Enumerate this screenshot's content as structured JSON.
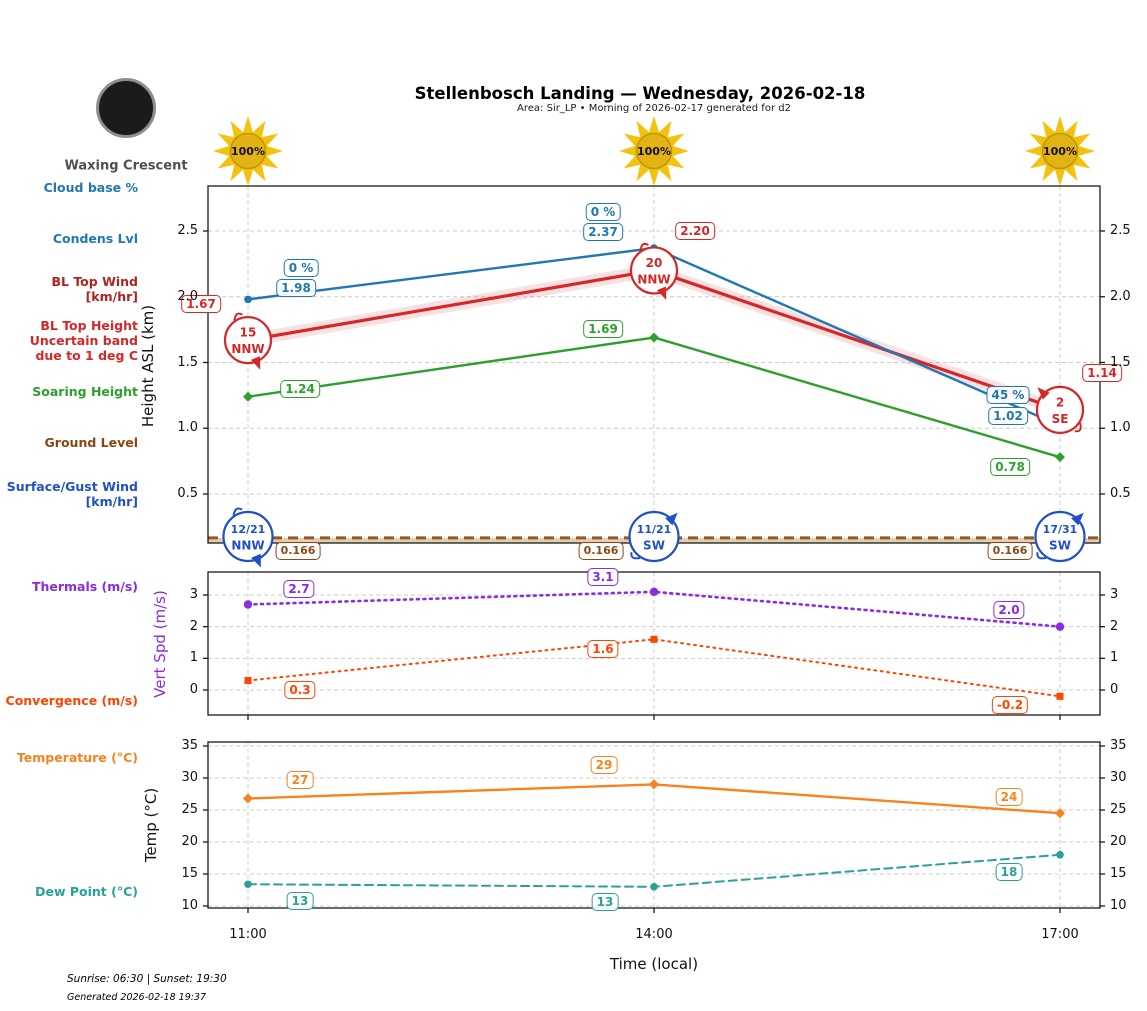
{
  "header": {
    "title": "Stellenbosch Landing — Wednesday, 2026-02-18",
    "subtitle": "Area: Sir_LP • Morning of 2026-02-17 generated for d2",
    "moon_phase": "Waxing Crescent",
    "sun_labels": [
      "100%",
      "100%",
      "100%"
    ]
  },
  "row_labels": {
    "cloud_base": "Cloud base %",
    "condens_lvl": "Condens Lvl",
    "bl_top_wind": "BL Top Wind\n[km/hr]",
    "bl_top_height": "BL Top Height\nUncertain band\ndue to 1 deg C",
    "soaring_height": "Soaring Height",
    "ground_level": "Ground Level",
    "surface_gust_wind": "Surface/Gust Wind\n[km/hr]",
    "thermals": "Thermals (m/s)",
    "convergence": "Convergence (m/s)",
    "temperature": "Temperature (°C)",
    "dew_point": "Dew Point (°C)"
  },
  "axes": {
    "x_ticks": [
      "11:00",
      "14:00",
      "17:00"
    ],
    "x_label": "Time (local)"
  },
  "footer": {
    "sun_times": "Sunrise: 06:30 | Sunset: 19:30",
    "generated": "Generated 2026-02-18 19:37"
  },
  "colors": {
    "grid": "#cccccc",
    "axis": "#1a1a1a",
    "ground_band": "rgba(205,165,115,0.55)",
    "ground_line": "#8f5b2d",
    "sun_ray": "#f2c20f",
    "sun_disc": "#e3b214",
    "sun_edge": "#bb950b"
  },
  "chart_data": [
    {
      "type": "line",
      "ylabel": "Height ASL (km)",
      "x": [
        "11:00",
        "14:00",
        "17:00"
      ],
      "yticks": [
        0.5,
        1.0,
        1.5,
        2.0,
        2.5
      ],
      "ylim": [
        0.13,
        2.83
      ],
      "grid": true,
      "series": [
        {
          "name": "Condensation Level (km)",
          "color": "#1f77b4",
          "line": "solid",
          "marker": "circle",
          "values": [
            1.98,
            2.37,
            1.02
          ],
          "labels": [
            "1.98",
            "2.37",
            "1.02"
          ]
        },
        {
          "name": "Cloud base %",
          "color": "#1f77b4",
          "labels_only": true,
          "values_pct": [
            0,
            0,
            45
          ],
          "labels": [
            "0 %",
            "0 %",
            "45 %"
          ]
        },
        {
          "name": "BL Top Height (km)",
          "color": "#d62728",
          "line": "solid",
          "band": true,
          "band_fill": "rgba(214,39,40,0.14)",
          "values": [
            1.67,
            2.2,
            1.14
          ],
          "labels": [
            "1.67",
            "2.20",
            "1.14"
          ]
        },
        {
          "name": "Soaring Height (km)",
          "color": "#2ca02c",
          "line": "solid",
          "marker": "diamond",
          "values": [
            1.24,
            1.69,
            0.78
          ],
          "labels": [
            "1.24",
            "1.69",
            "0.78"
          ]
        },
        {
          "name": "Ground Level (km)",
          "color": "#8a4a15",
          "line": "dashed",
          "values": [
            0.166,
            0.166,
            0.166
          ],
          "labels": [
            "0.166",
            "0.166",
            "0.166"
          ]
        }
      ],
      "wind_badges": [
        {
          "name": "BL Top Wind [km/hr]",
          "color": "#d62728",
          "points": [
            {
              "speed": "15",
              "dir": "NNW"
            },
            {
              "speed": "20",
              "dir": "NNW"
            },
            {
              "speed": "2",
              "dir": "SE"
            }
          ]
        },
        {
          "name": "Surface/Gust Wind [km/hr]",
          "color": "#2050c8",
          "points": [
            {
              "speed": "12/21",
              "dir": "NNW"
            },
            {
              "speed": "11/21",
              "dir": "SW"
            },
            {
              "speed": "17/31",
              "dir": "SW"
            }
          ]
        }
      ]
    },
    {
      "type": "line",
      "ylabel": "Vert Spd (m/s)",
      "x": [
        "11:00",
        "14:00",
        "17:00"
      ],
      "yticks": [
        0,
        1,
        2,
        3
      ],
      "ylim": [
        -0.8,
        3.7
      ],
      "grid": true,
      "series": [
        {
          "name": "Thermals (m/s)",
          "color": "#8a2be2",
          "line": "dotted",
          "marker": "circle",
          "values": [
            2.7,
            3.1,
            2.0
          ],
          "labels": [
            "2.7",
            "3.1",
            "2.0"
          ]
        },
        {
          "name": "Convergence (m/s)",
          "color": "#ff4500",
          "line": "dotted",
          "marker": "square",
          "values": [
            0.3,
            1.6,
            -0.2
          ],
          "labels": [
            "0.3",
            "1.6",
            "-0.2"
          ]
        }
      ]
    },
    {
      "type": "line",
      "ylabel": "Temp (°C)",
      "xlabel": "Time (local)",
      "x": [
        "11:00",
        "14:00",
        "17:00"
      ],
      "yticks": [
        10,
        15,
        20,
        25,
        30,
        35
      ],
      "ylim": [
        9.4,
        35.6
      ],
      "grid": true,
      "series": [
        {
          "name": "Temperature (°C)",
          "color": "#f8821e",
          "line": "solid",
          "marker": "diamond",
          "values": [
            26.8,
            29.0,
            24.5
          ],
          "labels": [
            "27",
            "29",
            "24"
          ]
        },
        {
          "name": "Dew Point (°C)",
          "color": "#2aa198",
          "line": "dashed",
          "marker": "circle",
          "values": [
            13.4,
            13.0,
            18.0
          ],
          "labels": [
            "13",
            "13",
            "18"
          ]
        }
      ]
    }
  ]
}
